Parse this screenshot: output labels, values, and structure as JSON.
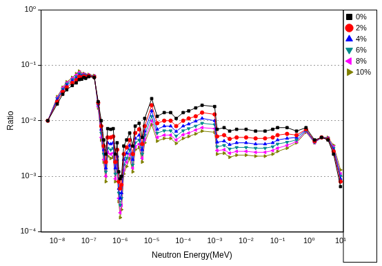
{
  "chart_data": {
    "type": "line",
    "x_label": "Neutron Energy(MeV)",
    "y_label": "Ratio",
    "log": true,
    "grid": "y",
    "legend": "upper right",
    "xlim": [
      3e-09,
      12
    ],
    "ylim": [
      0.0001,
      1
    ],
    "xticks": [
      {
        "value": 1e-08,
        "label": "10⁻⁸"
      },
      {
        "value": 1e-07,
        "label": "10⁻⁷"
      },
      {
        "value": 1e-06,
        "label": "10⁻⁶"
      },
      {
        "value": 1e-05,
        "label": "10⁻⁵"
      },
      {
        "value": 0.0001,
        "label": "10⁻⁴"
      },
      {
        "value": 0.001,
        "label": "10⁻³"
      },
      {
        "value": 0.01,
        "label": "10⁻²"
      },
      {
        "value": 0.1,
        "label": "10⁻¹"
      },
      {
        "value": 1,
        "label": "10⁰"
      },
      {
        "value": 10,
        "label": "10¹"
      }
    ],
    "yticks": [
      {
        "value": 0.0001,
        "label": "10⁻⁴"
      },
      {
        "value": 0.001,
        "label": "10⁻³"
      },
      {
        "value": 0.01,
        "label": "10⁻²"
      },
      {
        "value": 0.1,
        "label": "10⁻¹"
      },
      {
        "value": 1,
        "label": "10⁰"
      }
    ],
    "x": [
      5e-09,
      1e-08,
      1.5e-08,
      2e-08,
      3e-08,
      4e-08,
      5e-08,
      6e-08,
      7e-08,
      8e-08,
      1e-07,
      1.5e-07,
      2e-07,
      2.5e-07,
      3e-07,
      3.5e-07,
      4e-07,
      5e-07,
      6e-07,
      7e-07,
      8e-07,
      9e-07,
      1e-06,
      1.1e-06,
      1.3e-06,
      1.6e-06,
      2e-06,
      2.5e-06,
      3e-06,
      4e-06,
      5e-06,
      6e-06,
      1e-05,
      1.5e-05,
      2.5e-05,
      4e-05,
      6e-05,
      0.0001,
      0.00015,
      0.00025,
      0.0004,
      0.001,
      0.0012,
      0.002,
      0.003,
      0.005,
      0.01,
      0.02,
      0.04,
      0.07,
      0.1,
      0.2,
      0.4,
      0.8,
      1.5,
      2.5,
      4,
      6,
      10
    ],
    "series": [
      {
        "name": "0%",
        "color": "#000000",
        "marker": "square",
        "line_style": "solid",
        "values": [
          0.01,
          0.02,
          0.03,
          0.036,
          0.043,
          0.048,
          0.055,
          0.056,
          0.06,
          0.058,
          0.062,
          0.06,
          0.022,
          0.01,
          0.0045,
          0.0025,
          0.0072,
          0.007,
          0.0072,
          0.0025,
          0.004,
          0.0012,
          0.0009,
          0.001,
          0.0035,
          0.0045,
          0.006,
          0.0035,
          0.008,
          0.009,
          0.005,
          0.011,
          0.025,
          0.012,
          0.014,
          0.014,
          0.011,
          0.014,
          0.015,
          0.017,
          0.019,
          0.018,
          0.007,
          0.0075,
          0.0065,
          0.007,
          0.007,
          0.0065,
          0.0065,
          0.007,
          0.0075,
          0.0075,
          0.0065,
          0.0075,
          0.0045,
          0.005,
          0.0045,
          0.0025,
          0.00065
        ]
      },
      {
        "name": "2%",
        "color": "#ff0000",
        "marker": "circle",
        "line_style": "solid",
        "values": [
          0.01,
          0.022,
          0.033,
          0.04,
          0.048,
          0.054,
          0.062,
          0.06,
          0.063,
          0.061,
          0.064,
          0.061,
          0.021,
          0.008,
          0.0035,
          0.0018,
          0.005,
          0.005,
          0.0052,
          0.0018,
          0.003,
          0.0008,
          0.0006,
          0.0007,
          0.0025,
          0.0033,
          0.0045,
          0.0025,
          0.006,
          0.007,
          0.0038,
          0.008,
          0.019,
          0.009,
          0.01,
          0.01,
          0.008,
          0.01,
          0.011,
          0.012,
          0.014,
          0.013,
          0.0052,
          0.0055,
          0.0047,
          0.005,
          0.005,
          0.0048,
          0.0048,
          0.005,
          0.0055,
          0.0058,
          0.0055,
          0.007,
          0.0043,
          0.005,
          0.0046,
          0.0028,
          0.0008
        ]
      },
      {
        "name": "4%",
        "color": "#0000ff",
        "marker": "triangle",
        "line_style": "solid",
        "values": [
          0.01,
          0.024,
          0.035,
          0.043,
          0.052,
          0.058,
          0.066,
          0.063,
          0.065,
          0.063,
          0.065,
          0.062,
          0.02,
          0.007,
          0.003,
          0.0014,
          0.004,
          0.0038,
          0.004,
          0.0014,
          0.0023,
          0.0006,
          0.0004,
          0.0005,
          0.002,
          0.0026,
          0.0036,
          0.002,
          0.0048,
          0.0055,
          0.003,
          0.0065,
          0.015,
          0.007,
          0.008,
          0.008,
          0.0064,
          0.008,
          0.0087,
          0.0098,
          0.011,
          0.01,
          0.0041,
          0.0043,
          0.0037,
          0.004,
          0.004,
          0.0038,
          0.0038,
          0.004,
          0.0045,
          0.0048,
          0.005,
          0.0068,
          0.0042,
          0.005,
          0.0047,
          0.003,
          0.0009
        ]
      },
      {
        "name": "6%",
        "color": "#008b8b",
        "marker": "triangle_down",
        "line_style": "solid",
        "values": [
          0.01,
          0.025,
          0.037,
          0.046,
          0.055,
          0.062,
          0.07,
          0.066,
          0.067,
          0.065,
          0.066,
          0.063,
          0.019,
          0.006,
          0.0025,
          0.0012,
          0.0032,
          0.003,
          0.0032,
          0.0011,
          0.0019,
          0.0005,
          0.0003,
          0.0004,
          0.0016,
          0.0021,
          0.003,
          0.0016,
          0.004,
          0.0045,
          0.0025,
          0.0055,
          0.012,
          0.006,
          0.0066,
          0.0066,
          0.0053,
          0.0066,
          0.0072,
          0.008,
          0.009,
          0.0085,
          0.0034,
          0.0036,
          0.0031,
          0.0033,
          0.0033,
          0.0032,
          0.0032,
          0.0034,
          0.0038,
          0.0041,
          0.0045,
          0.0066,
          0.0041,
          0.005,
          0.0048,
          0.0032,
          0.001
        ]
      },
      {
        "name": "8%",
        "color": "#ff00ff",
        "marker": "triangle_left",
        "line_style": "solid",
        "values": [
          0.01,
          0.026,
          0.039,
          0.048,
          0.058,
          0.066,
          0.074,
          0.068,
          0.069,
          0.066,
          0.067,
          0.064,
          0.018,
          0.005,
          0.002,
          0.001,
          0.0027,
          0.0025,
          0.0026,
          0.0009,
          0.0016,
          0.0004,
          0.00022,
          0.0003,
          0.0013,
          0.0018,
          0.0025,
          0.0014,
          0.0034,
          0.0038,
          0.0021,
          0.0046,
          0.01,
          0.005,
          0.0055,
          0.0055,
          0.0045,
          0.0056,
          0.006,
          0.0068,
          0.0075,
          0.0072,
          0.0029,
          0.003,
          0.0026,
          0.0028,
          0.0028,
          0.0027,
          0.0027,
          0.0029,
          0.0032,
          0.0036,
          0.0042,
          0.0064,
          0.004,
          0.005,
          0.0049,
          0.0034,
          0.0011
        ]
      },
      {
        "name": "10%",
        "color": "#808000",
        "marker": "triangle_right",
        "line_style": "solid",
        "values": [
          0.01,
          0.027,
          0.04,
          0.05,
          0.06,
          0.07,
          0.078,
          0.07,
          0.071,
          0.068,
          0.068,
          0.065,
          0.017,
          0.0045,
          0.0018,
          0.0008,
          0.0023,
          0.0021,
          0.0022,
          0.0008,
          0.0014,
          0.00035,
          0.00018,
          0.00025,
          0.0011,
          0.0015,
          0.0021,
          0.0012,
          0.003,
          0.0033,
          0.0018,
          0.004,
          0.0085,
          0.0043,
          0.0048,
          0.0048,
          0.0039,
          0.0048,
          0.0052,
          0.0058,
          0.0065,
          0.0062,
          0.0025,
          0.0026,
          0.0022,
          0.0024,
          0.0024,
          0.0023,
          0.0023,
          0.0025,
          0.0028,
          0.0032,
          0.004,
          0.0062,
          0.004,
          0.005,
          0.005,
          0.0036,
          0.0013
        ]
      }
    ]
  }
}
